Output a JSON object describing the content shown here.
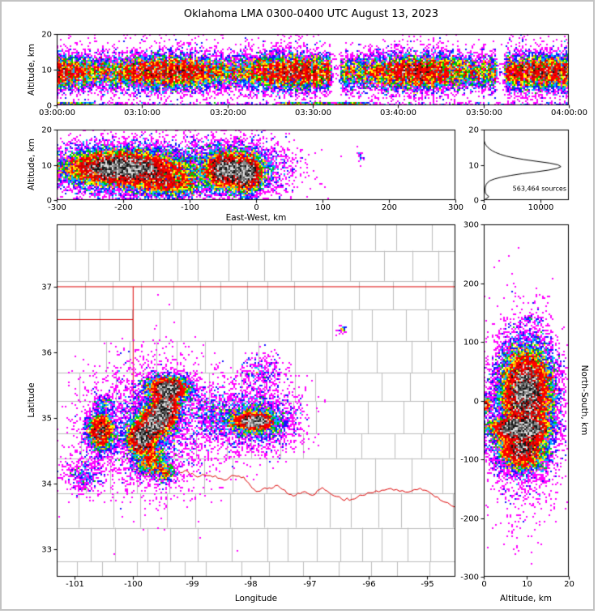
{
  "title": "Oklahoma LMA 0300-0400 UTC August 13, 2023",
  "colors": {
    "county_line": "#bdbdbd",
    "state_line": "#dd0000",
    "axis": "#000000",
    "background": "#ffffff",
    "frame": "#c3c3c3"
  },
  "colormap": {
    "levels": [
      "#ff00ff",
      "#1414ff",
      "#00b4ff",
      "#00c800",
      "#ffff00",
      "#ff9600",
      "#ff0000",
      "#c80000"
    ],
    "saturated": [
      "#141414",
      "#505050",
      "#8c8c8c",
      "#dcdcdc"
    ]
  },
  "chart_data": [
    {
      "id": "time_height",
      "type": "heatmap",
      "ylabel": "Altitude, km",
      "xlim": [
        0,
        3600
      ],
      "ylim": [
        0,
        20
      ],
      "xticks": [
        {
          "v": 0,
          "label": "03:00:00"
        },
        {
          "v": 600,
          "label": "03:10:00"
        },
        {
          "v": 1200,
          "label": "03:20:00"
        },
        {
          "v": 1800,
          "label": "03:30:00"
        },
        {
          "v": 2400,
          "label": "03:40:00"
        },
        {
          "v": 3000,
          "label": "03:50:00"
        },
        {
          "v": 3600,
          "label": "04:00:00"
        }
      ],
      "yticks": [
        {
          "v": 0,
          "label": "0"
        },
        {
          "v": 10,
          "label": "10"
        },
        {
          "v": 20,
          "label": "20"
        }
      ],
      "gaps": [
        [
          1930,
          2000
        ],
        [
          3090,
          3150
        ]
      ],
      "clusters": [
        {
          "band": true,
          "x0": 0,
          "x1": 3600,
          "cy": 9.3,
          "sy": 2.4,
          "n": 60000,
          "striate": true
        },
        {
          "band": true,
          "x0": 0,
          "x1": 3600,
          "cy": 9.5,
          "sy": 5.0,
          "n": 6000,
          "striate": true
        },
        {
          "band": true,
          "x0": 0,
          "x1": 3600,
          "y0": 0,
          "y1": 0.7,
          "n": 2600,
          "segments": [
            [
              0,
              260
            ],
            [
              1560,
              2180
            ]
          ],
          "segw": 0.18
        }
      ]
    },
    {
      "id": "east_west",
      "type": "heatmap",
      "xlabel": "East-West, km",
      "ylabel": "Altitude, km",
      "xlim": [
        -300,
        300
      ],
      "ylim": [
        0,
        20
      ],
      "xticks": [
        {
          "v": -300,
          "label": "-300"
        },
        {
          "v": -200,
          "label": "-200"
        },
        {
          "v": -100,
          "label": "-100"
        },
        {
          "v": 0,
          "label": "0"
        },
        {
          "v": 100,
          "label": "100"
        },
        {
          "v": 200,
          "label": "200"
        },
        {
          "v": 300,
          "label": "300"
        }
      ],
      "yticks": [
        {
          "v": 0,
          "label": "0"
        },
        {
          "v": 10,
          "label": "10"
        },
        {
          "v": 20,
          "label": "20"
        }
      ],
      "clusters": [
        {
          "cx": -205,
          "cy": 9.2,
          "sx": 38,
          "sy": 2.2,
          "n": 10000
        },
        {
          "cx": -195,
          "cy": 9.0,
          "sx": 62,
          "sy": 3.4,
          "n": 6000
        },
        {
          "cx": -135,
          "cy": 5.0,
          "sx": 28,
          "sy": 2.2,
          "n": 2800
        },
        {
          "cx": -190,
          "cy": 8.5,
          "sx": 75,
          "sy": 4.5,
          "n": 2400
        },
        {
          "cx": -48,
          "cy": 8.5,
          "sx": 13,
          "sy": 2.3,
          "n": 3400
        },
        {
          "cx": -15,
          "cy": 7.5,
          "sx": 12,
          "sy": 2.6,
          "n": 3500
        },
        {
          "cx": -30,
          "cy": 8.5,
          "sx": 30,
          "sy": 3.6,
          "n": 3000
        },
        {
          "cx": -30,
          "cy": 9.0,
          "sx": 48,
          "sy": 5.0,
          "n": 1500
        },
        {
          "cx": 158,
          "cy": 12.5,
          "sx": 3,
          "sy": 0.9,
          "n": 25
        }
      ]
    },
    {
      "id": "alt_histogram",
      "type": "line",
      "xlim": [
        0,
        15000
      ],
      "ylim": [
        0,
        20
      ],
      "xticks": [
        {
          "v": 0,
          "label": "0"
        },
        {
          "v": 10000,
          "label": "10000"
        }
      ],
      "yticks": [
        {
          "v": 0,
          "label": "0"
        },
        {
          "v": 10,
          "label": "10"
        },
        {
          "v": 20,
          "label": "20"
        }
      ],
      "annotation": "563,464 sources",
      "profile": [
        [
          0,
          80
        ],
        [
          0.5,
          550
        ],
        [
          1,
          900
        ],
        [
          1.5,
          520
        ],
        [
          2,
          300
        ],
        [
          2.5,
          260
        ],
        [
          3,
          240
        ],
        [
          3.5,
          260
        ],
        [
          4,
          330
        ],
        [
          4.5,
          450
        ],
        [
          5,
          700
        ],
        [
          5.5,
          1100
        ],
        [
          6,
          1900
        ],
        [
          6.5,
          3100
        ],
        [
          7,
          4800
        ],
        [
          7.5,
          6800
        ],
        [
          8,
          9200
        ],
        [
          8.5,
          11400
        ],
        [
          9,
          12900
        ],
        [
          9.5,
          13600
        ],
        [
          10,
          13100
        ],
        [
          10.5,
          11600
        ],
        [
          11,
          9300
        ],
        [
          11.5,
          7100
        ],
        [
          12,
          5300
        ],
        [
          12.5,
          3900
        ],
        [
          13,
          2900
        ],
        [
          13.5,
          2100
        ],
        [
          14,
          1500
        ],
        [
          14.5,
          1050
        ],
        [
          15,
          700
        ],
        [
          15.5,
          430
        ],
        [
          16,
          250
        ],
        [
          16.5,
          130
        ],
        [
          17,
          60
        ],
        [
          17.5,
          25
        ],
        [
          18,
          8
        ],
        [
          19,
          2
        ],
        [
          20,
          0
        ]
      ]
    },
    {
      "id": "map",
      "type": "heatmap",
      "xlabel": "Longitude",
      "ylabel": "Latitude",
      "xlim": [
        -101.3,
        -94.52
      ],
      "ylim": [
        32.58,
        37.95
      ],
      "xticks": [
        {
          "v": -101,
          "label": "-101"
        },
        {
          "v": -100,
          "label": "-100"
        },
        {
          "v": -99,
          "label": "-99"
        },
        {
          "v": -98,
          "label": "-98"
        },
        {
          "v": -97,
          "label": "-97"
        },
        {
          "v": -96,
          "label": "-96"
        },
        {
          "v": -95,
          "label": "-95"
        }
      ],
      "yticks": [
        {
          "v": 33,
          "label": "33"
        },
        {
          "v": 34,
          "label": "34"
        },
        {
          "v": 35,
          "label": "35"
        },
        {
          "v": 36,
          "label": "36"
        },
        {
          "v": 37,
          "label": "37"
        }
      ],
      "boundaries": [
        {
          "name": "kansas-border",
          "points": [
            [
              -101.3,
              37
            ],
            [
              -94.52,
              37
            ]
          ]
        },
        {
          "name": "panhandle-south-border",
          "points": [
            [
              -101.3,
              36.5
            ],
            [
              -100,
              36.5
            ]
          ]
        },
        {
          "name": "panhandle-east-border",
          "points": [
            [
              -100,
              37
            ],
            [
              -100,
              36.5
            ]
          ]
        },
        {
          "name": "west-border",
          "points": [
            [
              -100,
              36.5
            ],
            [
              -100,
              34.22
            ]
          ]
        },
        {
          "name": "red-river",
          "wiggle": true,
          "points": [
            [
              -100,
              34.22
            ],
            [
              -99.85,
              34.18
            ],
            [
              -99.72,
              34.1
            ],
            [
              -99.58,
              34.2
            ],
            [
              -99.42,
              34.22
            ],
            [
              -99.28,
              34.17
            ],
            [
              -99.12,
              34.2
            ],
            [
              -98.95,
              34.12
            ],
            [
              -98.78,
              34.13
            ],
            [
              -98.6,
              34.12
            ],
            [
              -98.45,
              34.05
            ],
            [
              -98.28,
              34.12
            ],
            [
              -98.12,
              34.1
            ],
            [
              -98.0,
              33.96
            ],
            [
              -97.88,
              33.88
            ],
            [
              -97.72,
              33.92
            ],
            [
              -97.58,
              33.97
            ],
            [
              -97.42,
              33.9
            ],
            [
              -97.28,
              33.81
            ],
            [
              -97.12,
              33.87
            ],
            [
              -96.95,
              33.82
            ],
            [
              -96.78,
              33.94
            ],
            [
              -96.62,
              33.83
            ],
            [
              -96.45,
              33.76
            ],
            [
              -96.28,
              33.76
            ],
            [
              -96.1,
              33.82
            ],
            [
              -95.92,
              33.86
            ],
            [
              -95.72,
              33.9
            ],
            [
              -95.52,
              33.91
            ],
            [
              -95.32,
              33.87
            ],
            [
              -95.12,
              33.93
            ],
            [
              -94.95,
              33.86
            ],
            [
              -94.78,
              33.75
            ],
            [
              -94.52,
              33.64
            ]
          ]
        }
      ],
      "clusters": [
        {
          "cx": -99.85,
          "cy": 34.7,
          "sx": 0.13,
          "sy": 0.13,
          "n": 3400
        },
        {
          "cx": -99.6,
          "cy": 34.95,
          "sx": 0.13,
          "sy": 0.13,
          "n": 3400
        },
        {
          "cx": -99.45,
          "cy": 35.15,
          "sx": 0.12,
          "sy": 0.12,
          "n": 2900
        },
        {
          "cx": -99.4,
          "cy": 35.45,
          "sx": 0.18,
          "sy": 0.09,
          "n": 3600
        },
        {
          "cx": -99.5,
          "cy": 35.47,
          "sx": 0.05,
          "sy": 0.03,
          "n": 220
        },
        {
          "cx": -100.55,
          "cy": 34.8,
          "sx": 0.12,
          "sy": 0.15,
          "n": 2500
        },
        {
          "cx": -99.7,
          "cy": 34.35,
          "sx": 0.15,
          "sy": 0.12,
          "n": 1100
        },
        {
          "cx": -99.45,
          "cy": 34.18,
          "sx": 0.1,
          "sy": 0.08,
          "n": 420
        },
        {
          "cx": -99.7,
          "cy": 34.9,
          "sx": 0.55,
          "sy": 0.5,
          "n": 3200
        },
        {
          "cx": -97.95,
          "cy": 34.95,
          "sx": 0.16,
          "sy": 0.055,
          "n": 1900
        },
        {
          "cx": -97.85,
          "cy": 34.95,
          "sx": 0.05,
          "sy": 0.03,
          "n": 260
        },
        {
          "cx": -97.95,
          "cy": 34.95,
          "sx": 0.28,
          "sy": 0.13,
          "n": 1700
        },
        {
          "cx": -97.9,
          "cy": 35.0,
          "sx": 0.4,
          "sy": 0.3,
          "n": 1500
        },
        {
          "cx": -98.6,
          "cy": 35.1,
          "sx": 0.25,
          "sy": 0.2,
          "n": 520
        },
        {
          "cx": -96.45,
          "cy": 36.35,
          "sx": 0.035,
          "sy": 0.03,
          "n": 42
        },
        {
          "cx": -97.8,
          "cy": 35.7,
          "sx": 0.2,
          "sy": 0.15,
          "n": 300
        },
        {
          "cx": -100.85,
          "cy": 34.15,
          "sx": 0.18,
          "sy": 0.15,
          "n": 430
        },
        {
          "cx": -100.5,
          "cy": 35.25,
          "sx": 0.08,
          "sy": 0.06,
          "n": 130
        }
      ]
    },
    {
      "id": "north_south",
      "type": "heatmap",
      "xlabel": "Altitude, km",
      "ylabel": "North-South, km",
      "xlim": [
        0,
        20
      ],
      "ylim": [
        -300,
        300
      ],
      "xticks": [
        {
          "v": 0,
          "label": "0"
        },
        {
          "v": 10,
          "label": "10"
        },
        {
          "v": 20,
          "label": "20"
        }
      ],
      "yticks": [
        {
          "v": 300,
          "label": "300"
        },
        {
          "v": 200,
          "label": "200"
        },
        {
          "v": 100,
          "label": "100"
        },
        {
          "v": 0,
          "label": "0"
        },
        {
          "v": -100,
          "label": "-100"
        },
        {
          "v": -200,
          "label": "-200"
        },
        {
          "v": -300,
          "label": "-300"
        }
      ],
      "clusters": [
        {
          "cx": 10,
          "cy": 15,
          "sx": 3.2,
          "sy": 40,
          "n": 15000
        },
        {
          "cx": 8.3,
          "cy": -47,
          "sx": 3.5,
          "sy": 8,
          "n": 5200
        },
        {
          "cx": 9,
          "cy": -85,
          "sx": 3,
          "sy": 18,
          "n": 4800
        },
        {
          "cx": 9.5,
          "cy": -25,
          "sx": 4.5,
          "sy": 80,
          "n": 2600
        },
        {
          "cx": 11,
          "cy": 140,
          "sx": 1.2,
          "sy": 4,
          "n": 45
        },
        {
          "cx": 0.5,
          "cy": -8,
          "sx": 0.6,
          "sy": 7,
          "n": 300
        }
      ]
    }
  ]
}
